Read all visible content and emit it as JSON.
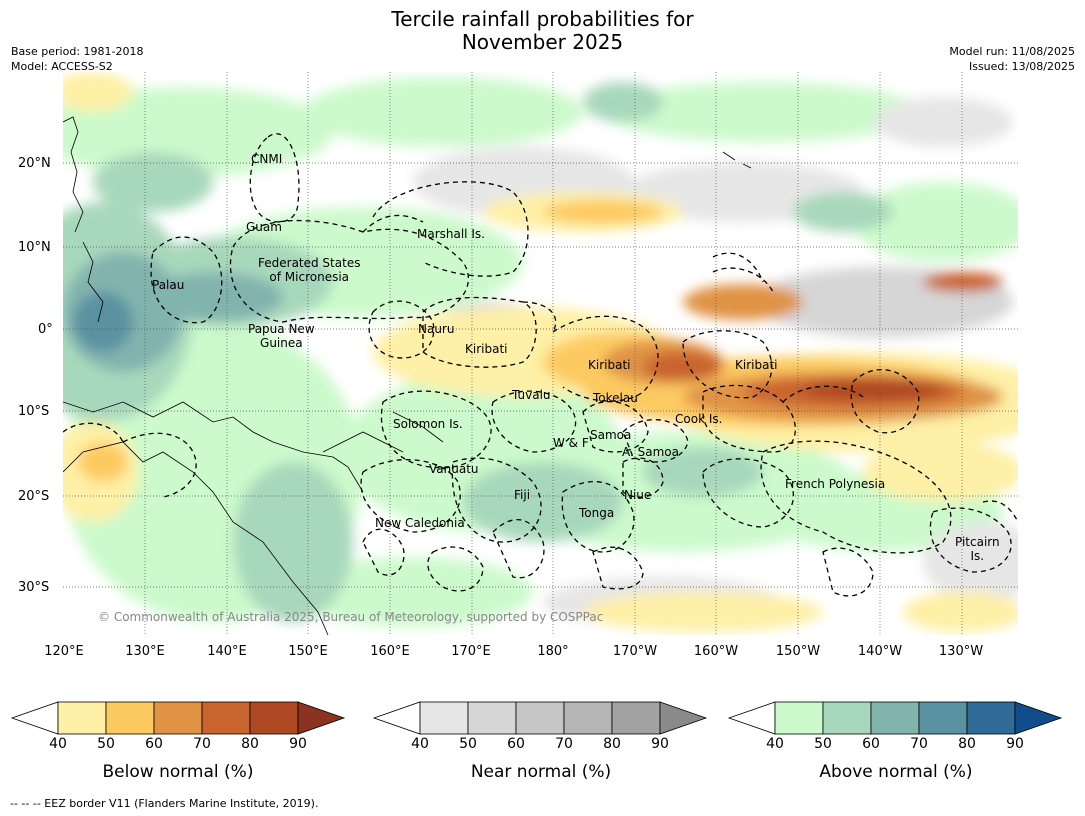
{
  "title": {
    "line1": "Tercile rainfall probabilities for",
    "line2": "November 2025"
  },
  "meta": {
    "base_period": "Base period: 1981-2018",
    "model": "Model: ACCESS-S2",
    "model_run": "Model run: 11/08/2025",
    "issued": "Issued: 13/08/2025"
  },
  "axes": {
    "lat_labels": [
      "20°N",
      "10°N",
      "0°",
      "10°S",
      "20°S",
      "30°S"
    ],
    "lon_labels": [
      "120°E",
      "130°E",
      "140°E",
      "150°E",
      "160°E",
      "170°E",
      "180°",
      "170°W",
      "160°W",
      "150°W",
      "140°W",
      "130°W"
    ]
  },
  "regions": {
    "cnmi": "CNMI",
    "guam": "Guam",
    "marshall": "Marshall Is.",
    "fsm": "Federated States\nof Micronesia",
    "palau": "Palau",
    "png": "Papua New\nGuinea",
    "nauru": "Nauru",
    "kiribati_w": "Kiribati",
    "kiribati_c": "Kiribati",
    "kiribati_e": "Kiribati",
    "tuvalu": "Tuvalu",
    "tokelau": "Tokelau",
    "cook": "Cook Is.",
    "solomon": "Solomon Is.",
    "samoa": "Samoa",
    "wf": "W & F",
    "asamoa": "A. Samoa",
    "vanuatu": "Vanuatu",
    "fiji": "Fiji",
    "niue": "Niue",
    "tonga": "Tonga",
    "french_polynesia": "French Polynesia",
    "new_caledonia": "New Caledonia",
    "pitcairn": "Pitcairn\nIs."
  },
  "copyright": "© Commonwealth of Australia 2025, Bureau of Meteorology, supported by COSPPac",
  "colorbars": {
    "ticks": [
      "40",
      "50",
      "60",
      "70",
      "80",
      "90"
    ],
    "below": {
      "title": "Below normal (%)",
      "colors": [
        "#fef0a6",
        "#fdca62",
        "#e09345",
        "#c9642f",
        "#ad4823",
        "#8b3320"
      ]
    },
    "near": {
      "title": "Near normal (%)",
      "colors": [
        "#e6e6e6",
        "#d6d6d6",
        "#c6c6c6",
        "#b5b5b5",
        "#a2a2a2",
        "#8a8a8a"
      ]
    },
    "above": {
      "title": "Above normal (%)",
      "colors": [
        "#ccfacc",
        "#a8d8bc",
        "#82b4ae",
        "#5a92a2",
        "#2f6a98",
        "#114d8c"
      ]
    }
  },
  "footnote": "--  --  -- EEZ border V11 (Flanders Marine Institute, 2019)."
}
